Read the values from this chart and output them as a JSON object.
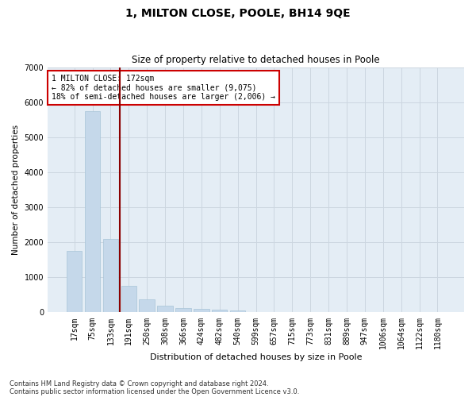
{
  "title": "1, MILTON CLOSE, POOLE, BH14 9QE",
  "subtitle": "Size of property relative to detached houses in Poole",
  "xlabel": "Distribution of detached houses by size in Poole",
  "ylabel": "Number of detached properties",
  "footnote1": "Contains HM Land Registry data © Crown copyright and database right 2024.",
  "footnote2": "Contains public sector information licensed under the Open Government Licence v3.0.",
  "bar_labels": [
    "17sqm",
    "75sqm",
    "133sqm",
    "191sqm",
    "250sqm",
    "308sqm",
    "366sqm",
    "424sqm",
    "482sqm",
    "540sqm",
    "599sqm",
    "657sqm",
    "715sqm",
    "773sqm",
    "831sqm",
    "889sqm",
    "947sqm",
    "1006sqm",
    "1064sqm",
    "1122sqm",
    "1180sqm"
  ],
  "bar_values": [
    1750,
    5750,
    2100,
    750,
    375,
    200,
    130,
    100,
    75,
    50,
    0,
    0,
    0,
    0,
    0,
    0,
    0,
    0,
    0,
    0,
    0
  ],
  "bar_color": "#c5d8ea",
  "bar_edge_color": "#a8c4d8",
  "grid_color": "#ccd6e0",
  "background_color": "#e4edf5",
  "vline_x": 2.5,
  "vline_color": "#8b0000",
  "annotation_text": "1 MILTON CLOSE: 172sqm\n← 82% of detached houses are smaller (9,075)\n18% of semi-detached houses are larger (2,006) →",
  "annotation_box_color": "#cc0000",
  "ylim": [
    0,
    7000
  ],
  "yticks": [
    0,
    1000,
    2000,
    3000,
    4000,
    5000,
    6000,
    7000
  ],
  "title_fontsize": 10,
  "subtitle_fontsize": 8.5,
  "xlabel_fontsize": 8,
  "ylabel_fontsize": 7.5,
  "tick_fontsize": 7,
  "annot_fontsize": 7,
  "footnote_fontsize": 6
}
